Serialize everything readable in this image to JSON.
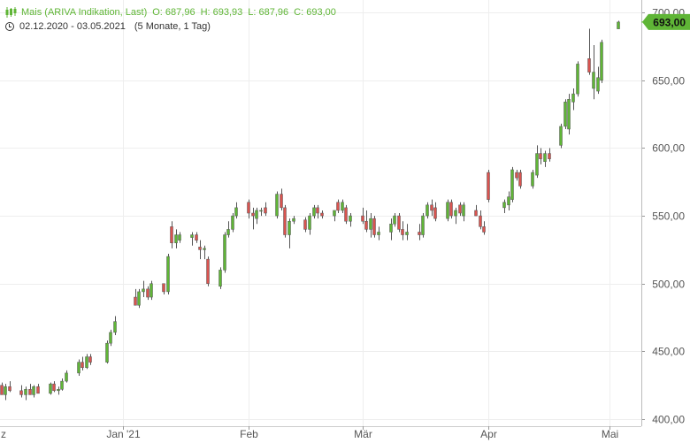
{
  "legend": {
    "instrument": "Mais (ARIVA Indikation, Last)",
    "open": "O: 687,96",
    "high": "H: 693,93",
    "low": "L: 687,96",
    "close": "C: 693,00",
    "date_range": "02.12.2020 - 03.05.2021",
    "period": "(5 Monate, 1 Tag)"
  },
  "colors": {
    "up": "#5fb536",
    "down": "#d9534f",
    "grid": "#eeeeee",
    "last_price_bg": "#5fb536"
  },
  "icons": {
    "candles": "candlestick-icon",
    "clock": "clock-icon"
  },
  "chart_data": {
    "type": "candlestick",
    "ylim": [
      395,
      705
    ],
    "y_ticks": [
      400,
      450,
      500,
      550,
      600,
      650,
      700
    ],
    "y_tick_labels": [
      "400,00",
      "450,00",
      "500,00",
      "550,00",
      "600,00",
      "650,00",
      "700,00"
    ],
    "x_tick_labels": [
      {
        "label": "z",
        "date": "2020-12"
      },
      {
        "label": "Jan '21",
        "date": "2021-01-01"
      },
      {
        "label": "Feb",
        "date": "2021-02-01"
      },
      {
        "label": "Mär",
        "date": "2021-03-01"
      },
      {
        "label": "Apr",
        "date": "2021-04-01"
      },
      {
        "label": "Mai",
        "date": "2021-05-01"
      }
    ],
    "last_price": "693,00",
    "candles": [
      [
        "2020-12-02",
        425,
        427,
        418,
        418
      ],
      [
        "2020-12-03",
        418,
        426,
        414,
        424
      ],
      [
        "2020-12-04",
        424,
        428,
        420,
        421
      ],
      [
        "2020-12-07",
        421,
        425,
        416,
        418
      ],
      [
        "2020-12-08",
        418,
        424,
        414,
        422
      ],
      [
        "2020-12-09",
        422,
        426,
        418,
        418
      ],
      [
        "2020-12-10",
        418,
        425,
        416,
        424
      ],
      [
        "2020-12-11",
        424,
        426,
        419,
        419
      ],
      [
        "2020-12-14",
        419,
        427,
        418,
        426
      ],
      [
        "2020-12-15",
        426,
        428,
        420,
        421
      ],
      [
        "2020-12-16",
        421,
        424,
        418,
        422
      ],
      [
        "2020-12-17",
        422,
        430,
        421,
        428
      ],
      [
        "2020-12-18",
        428,
        436,
        427,
        434
      ],
      [
        "2020-12-21",
        434,
        444,
        432,
        442
      ],
      [
        "2020-12-22",
        442,
        446,
        436,
        438
      ],
      [
        "2020-12-23",
        438,
        448,
        437,
        446
      ],
      [
        "2020-12-24",
        446,
        448,
        440,
        442
      ],
      [
        "2020-12-28",
        442,
        458,
        441,
        456
      ],
      [
        "2020-12-29",
        456,
        466,
        454,
        464
      ],
      [
        "2020-12-30",
        464,
        476,
        462,
        472
      ],
      [
        "2021-01-04",
        490,
        496,
        484,
        484
      ],
      [
        "2021-01-05",
        484,
        496,
        482,
        494
      ],
      [
        "2021-01-06",
        494,
        502,
        490,
        496
      ],
      [
        "2021-01-07",
        496,
        498,
        488,
        490
      ],
      [
        "2021-01-08",
        490,
        502,
        488,
        500
      ],
      [
        "2021-01-11",
        500,
        498,
        492,
        494
      ],
      [
        "2021-01-12",
        494,
        522,
        492,
        520
      ],
      [
        "2021-01-13",
        542,
        546,
        526,
        530
      ],
      [
        "2021-01-14",
        530,
        540,
        526,
        536
      ],
      [
        "2021-01-15",
        532,
        538,
        530,
        536
      ],
      [
        "2021-01-18",
        534,
        538,
        528,
        536
      ],
      [
        "2021-01-19",
        536,
        538,
        530,
        532
      ],
      [
        "2021-01-20",
        527,
        532,
        518,
        525
      ],
      [
        "2021-01-21",
        525,
        528,
        518,
        526
      ],
      [
        "2021-01-22",
        518,
        520,
        498,
        500
      ],
      [
        "2021-01-25",
        498,
        512,
        496,
        510
      ],
      [
        "2021-01-26",
        510,
        538,
        508,
        536
      ],
      [
        "2021-01-27",
        536,
        546,
        534,
        540
      ],
      [
        "2021-01-28",
        540,
        552,
        538,
        550
      ],
      [
        "2021-01-29",
        550,
        560,
        548,
        556
      ],
      [
        "2021-02-01",
        560,
        562,
        548,
        552
      ],
      [
        "2021-02-02",
        552,
        556,
        540,
        550
      ],
      [
        "2021-02-03",
        548,
        556,
        544,
        554
      ],
      [
        "2021-02-04",
        554,
        556,
        550,
        554
      ],
      [
        "2021-02-05",
        556,
        560,
        550,
        552
      ],
      [
        "2021-02-08",
        550,
        568,
        548,
        566
      ],
      [
        "2021-02-09",
        566,
        570,
        554,
        556
      ],
      [
        "2021-02-10",
        556,
        558,
        534,
        536
      ],
      [
        "2021-02-11",
        536,
        548,
        526,
        546
      ],
      [
        "2021-02-12",
        546,
        550,
        544,
        548
      ],
      [
        "2021-02-15",
        547,
        549,
        538,
        540
      ],
      [
        "2021-02-16",
        540,
        552,
        536,
        550
      ],
      [
        "2021-02-17",
        550,
        558,
        548,
        556
      ],
      [
        "2021-02-18",
        556,
        558,
        548,
        552
      ],
      [
        "2021-02-19",
        552,
        554,
        548,
        550
      ],
      [
        "2021-02-22",
        550,
        554,
        546,
        554
      ],
      [
        "2021-02-23",
        560,
        562,
        552,
        554
      ],
      [
        "2021-02-24",
        554,
        562,
        552,
        560
      ],
      [
        "2021-02-25",
        556,
        558,
        544,
        546
      ],
      [
        "2021-02-26",
        546,
        552,
        542,
        550
      ],
      [
        "2021-03-01",
        550,
        556,
        544,
        546
      ],
      [
        "2021-03-02",
        546,
        554,
        538,
        540
      ],
      [
        "2021-03-03",
        540,
        552,
        534,
        548
      ],
      [
        "2021-03-04",
        548,
        550,
        534,
        536
      ],
      [
        "2021-03-05",
        536,
        542,
        532,
        538
      ],
      [
        "2021-03-08",
        538,
        548,
        532,
        544
      ],
      [
        "2021-03-09",
        544,
        552,
        542,
        550
      ],
      [
        "2021-03-10",
        550,
        552,
        538,
        540
      ],
      [
        "2021-03-11",
        540,
        546,
        532,
        536
      ],
      [
        "2021-03-12",
        536,
        544,
        532,
        538
      ],
      [
        "2021-03-15",
        538,
        544,
        532,
        536
      ],
      [
        "2021-03-16",
        536,
        552,
        534,
        550
      ],
      [
        "2021-03-17",
        550,
        560,
        548,
        558
      ],
      [
        "2021-03-18",
        558,
        562,
        550,
        554
      ],
      [
        "2021-03-19",
        556,
        560,
        546,
        548
      ],
      [
        "2021-03-22",
        548,
        562,
        546,
        560
      ],
      [
        "2021-03-23",
        560,
        562,
        548,
        550
      ],
      [
        "2021-03-24",
        550,
        556,
        544,
        554
      ],
      [
        "2021-03-25",
        558,
        560,
        550,
        552
      ],
      [
        "2021-03-26",
        550,
        560,
        546,
        558
      ],
      [
        "2021-03-29",
        554,
        558,
        550,
        550
      ],
      [
        "2021-03-30",
        550,
        554,
        540,
        542
      ],
      [
        "2021-03-31",
        542,
        546,
        536,
        538
      ],
      [
        "2021-04-01",
        582,
        584,
        560,
        562
      ],
      [
        "2021-04-05",
        556,
        562,
        552,
        560
      ],
      [
        "2021-04-06",
        558,
        568,
        554,
        564
      ],
      [
        "2021-04-07",
        562,
        586,
        560,
        584
      ],
      [
        "2021-04-08",
        582,
        584,
        576,
        578
      ],
      [
        "2021-04-09",
        582,
        584,
        570,
        572
      ],
      [
        "2021-04-12",
        572,
        584,
        570,
        582
      ],
      [
        "2021-04-13",
        580,
        602,
        578,
        596
      ],
      [
        "2021-04-14",
        596,
        600,
        588,
        592
      ],
      [
        "2021-04-15",
        590,
        598,
        586,
        596
      ],
      [
        "2021-04-16",
        596,
        600,
        590,
        592
      ],
      [
        "2021-04-19",
        602,
        618,
        600,
        616
      ],
      [
        "2021-04-20",
        616,
        636,
        614,
        634
      ],
      [
        "2021-04-21",
        614,
        640,
        610,
        636
      ],
      [
        "2021-04-22",
        634,
        644,
        628,
        640
      ],
      [
        "2021-04-23",
        640,
        664,
        638,
        662
      ],
      [
        "2021-04-26",
        666,
        688,
        654,
        656
      ],
      [
        "2021-04-27",
        644,
        676,
        636,
        656
      ],
      [
        "2021-04-28",
        642,
        660,
        640,
        652
      ],
      [
        "2021-04-29",
        650,
        680,
        648,
        678
      ],
      [
        "2021-05-03",
        687.96,
        693.93,
        687.96,
        693
      ]
    ]
  }
}
